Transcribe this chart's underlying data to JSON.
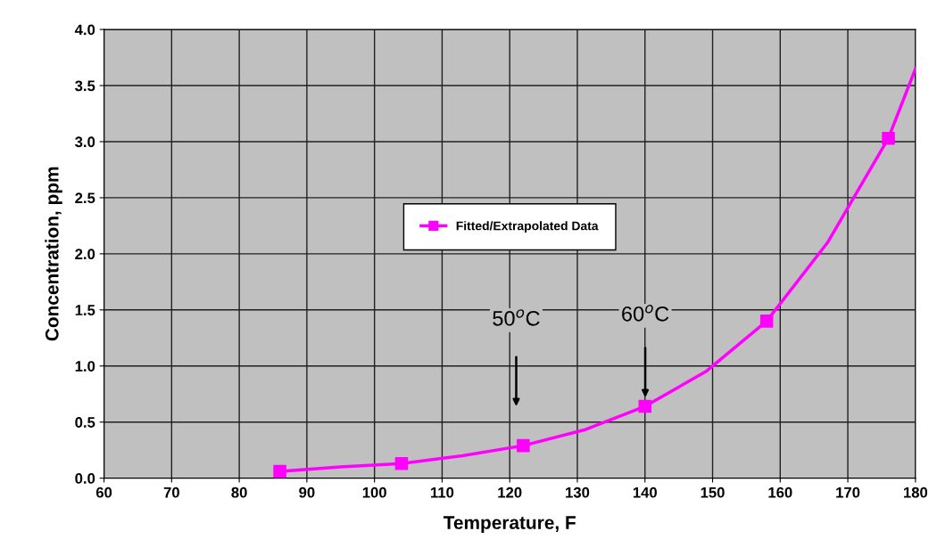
{
  "chart_data": {
    "type": "line",
    "xlabel": "Temperature, F",
    "ylabel": "Concentration, ppm",
    "xlim": [
      60,
      180
    ],
    "xticks": [
      60,
      70,
      80,
      90,
      100,
      110,
      120,
      130,
      140,
      150,
      160,
      170,
      180
    ],
    "ylim": [
      0,
      4.0
    ],
    "yticks": [
      {
        "value": 0,
        "label": "0.0"
      },
      {
        "value": 0.5,
        "label": "0.5"
      },
      {
        "value": 1.0,
        "label": "1.0"
      },
      {
        "value": 1.5,
        "label": "1.5"
      },
      {
        "value": 2.0,
        "label": "2.0"
      },
      {
        "value": 2.5,
        "label": "2.5"
      },
      {
        "value": 3.0,
        "label": "3.0"
      },
      {
        "value": 3.5,
        "label": "3.5"
      },
      {
        "value": 4.0,
        "label": "4.0"
      }
    ],
    "grid": true,
    "legend": "center",
    "series": [
      {
        "color": "#ff00ff",
        "marker": "none",
        "x": [
          86,
          95,
          104,
          113,
          122,
          131,
          140,
          149,
          158,
          167,
          176,
          180
        ],
        "values": [
          0.06,
          0.1,
          0.13,
          0.2,
          0.29,
          0.43,
          0.64,
          0.95,
          1.4,
          2.1,
          3.03,
          3.65
        ]
      },
      {
        "type": "scatter",
        "name": "Fitted/Extrapolated Data",
        "color": "#ff00ff",
        "marker": "square",
        "x": [
          86,
          104,
          122,
          140,
          158,
          176
        ],
        "values": [
          0.06,
          0.13,
          0.29,
          0.64,
          1.4,
          3.03
        ]
      }
    ],
    "annotations": [
      "50$^{o}$C",
      "60$^{o}$C"
    ]
  }
}
